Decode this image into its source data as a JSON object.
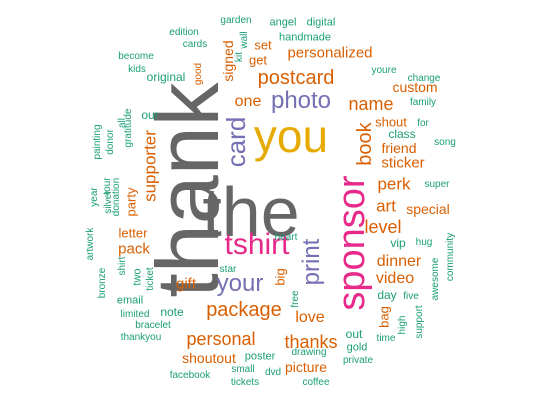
{
  "colors": {
    "gray": "#666666",
    "gold": "#E6AB02",
    "orange": "#D95F02",
    "purple": "#7570B3",
    "magenta": "#E7298A",
    "teal": "#1B9E77"
  },
  "words": [
    {
      "text": "thank",
      "color": "gray"
    },
    {
      "text": "the",
      "color": "gray"
    },
    {
      "text": "you",
      "color": "gold"
    },
    {
      "text": "sponsor",
      "color": "magenta"
    },
    {
      "text": "tshirt",
      "color": "magenta"
    },
    {
      "text": "photo",
      "color": "purple"
    },
    {
      "text": "card",
      "color": "purple"
    },
    {
      "text": "your",
      "color": "purple"
    },
    {
      "text": "print",
      "color": "purple"
    },
    {
      "text": "postcard",
      "color": "orange"
    },
    {
      "text": "package",
      "color": "orange"
    },
    {
      "text": "personal",
      "color": "orange"
    },
    {
      "text": "thanks",
      "color": "orange"
    },
    {
      "text": "book",
      "color": "orange"
    },
    {
      "text": "name",
      "color": "orange"
    },
    {
      "text": "level",
      "color": "orange"
    },
    {
      "text": "love",
      "color": "orange"
    },
    {
      "text": "art",
      "color": "orange"
    },
    {
      "text": "perk",
      "color": "orange"
    },
    {
      "text": "supporter",
      "color": "orange"
    },
    {
      "text": "personalized",
      "color": "orange"
    },
    {
      "text": "one",
      "color": "orange"
    },
    {
      "text": "signed",
      "color": "orange"
    },
    {
      "text": "video",
      "color": "orange"
    },
    {
      "text": "dinner",
      "color": "orange"
    },
    {
      "text": "gift",
      "color": "orange"
    },
    {
      "text": "pack",
      "color": "orange"
    },
    {
      "text": "sticker",
      "color": "orange"
    },
    {
      "text": "special",
      "color": "orange"
    },
    {
      "text": "friend",
      "color": "orange"
    },
    {
      "text": "shoutout",
      "color": "orange"
    },
    {
      "text": "custom",
      "color": "orange"
    },
    {
      "text": "picture",
      "color": "orange"
    },
    {
      "text": "party",
      "color": "orange"
    },
    {
      "text": "letter",
      "color": "orange"
    },
    {
      "text": "big",
      "color": "orange"
    },
    {
      "text": "bag",
      "color": "orange"
    },
    {
      "text": "set",
      "color": "orange"
    },
    {
      "text": "get",
      "color": "orange"
    },
    {
      "text": "shout",
      "color": "orange"
    },
    {
      "text": "original",
      "color": "teal"
    },
    {
      "text": "note",
      "color": "teal"
    },
    {
      "text": "vip",
      "color": "teal"
    },
    {
      "text": "out",
      "color": "teal"
    },
    {
      "text": "day",
      "color": "teal"
    },
    {
      "text": "class",
      "color": "teal"
    },
    {
      "text": "two",
      "color": "teal"
    },
    {
      "text": "our",
      "color": "teal"
    },
    {
      "text": "gold",
      "color": "teal"
    },
    {
      "text": "poster",
      "color": "teal"
    },
    {
      "text": "email",
      "color": "teal"
    },
    {
      "text": "handmade",
      "color": "teal"
    },
    {
      "text": "angel",
      "color": "teal"
    },
    {
      "text": "digital",
      "color": "teal"
    },
    {
      "text": "youre",
      "color": "teal"
    },
    {
      "text": "family",
      "color": "teal"
    },
    {
      "text": "song",
      "color": "teal"
    },
    {
      "text": "super",
      "color": "teal"
    },
    {
      "text": "hug",
      "color": "teal"
    },
    {
      "text": "five",
      "color": "teal"
    },
    {
      "text": "private",
      "color": "teal"
    },
    {
      "text": "small",
      "color": "teal"
    },
    {
      "text": "drawing",
      "color": "teal"
    },
    {
      "text": "tickets",
      "color": "teal"
    },
    {
      "text": "coffee",
      "color": "teal"
    },
    {
      "text": "facebook",
      "color": "teal"
    },
    {
      "text": "thankyou",
      "color": "teal"
    },
    {
      "text": "bracelet",
      "color": "teal"
    },
    {
      "text": "limited",
      "color": "teal"
    },
    {
      "text": "bronze",
      "color": "teal"
    },
    {
      "text": "artwork",
      "color": "teal"
    },
    {
      "text": "year",
      "color": "teal"
    },
    {
      "text": "painting",
      "color": "teal"
    },
    {
      "text": "silver",
      "color": "teal"
    },
    {
      "text": "tour",
      "color": "teal"
    },
    {
      "text": "donation",
      "color": "teal"
    },
    {
      "text": "donor",
      "color": "teal"
    },
    {
      "text": "gratitude",
      "color": "teal"
    },
    {
      "text": "all",
      "color": "teal"
    },
    {
      "text": "shirt",
      "color": "teal"
    },
    {
      "text": "ticket",
      "color": "teal"
    },
    {
      "text": "become",
      "color": "teal"
    },
    {
      "text": "kids",
      "color": "teal"
    },
    {
      "text": "edition",
      "color": "teal"
    },
    {
      "text": "cards",
      "color": "teal"
    },
    {
      "text": "garden",
      "color": "teal"
    },
    {
      "text": "wall",
      "color": "teal"
    },
    {
      "text": "kit",
      "color": "teal"
    },
    {
      "text": "good",
      "color": "orange"
    },
    {
      "text": "change",
      "color": "teal"
    },
    {
      "text": "for",
      "color": "teal"
    },
    {
      "text": "heart",
      "color": "teal"
    },
    {
      "text": "star",
      "color": "teal"
    },
    {
      "text": "free",
      "color": "teal"
    },
    {
      "text": "time",
      "color": "teal"
    },
    {
      "text": "high",
      "color": "teal"
    },
    {
      "text": "support",
      "color": "teal"
    },
    {
      "text": "awesome",
      "color": "teal"
    },
    {
      "text": "community",
      "color": "teal"
    },
    {
      "text": "dvd",
      "color": "teal"
    }
  ]
}
